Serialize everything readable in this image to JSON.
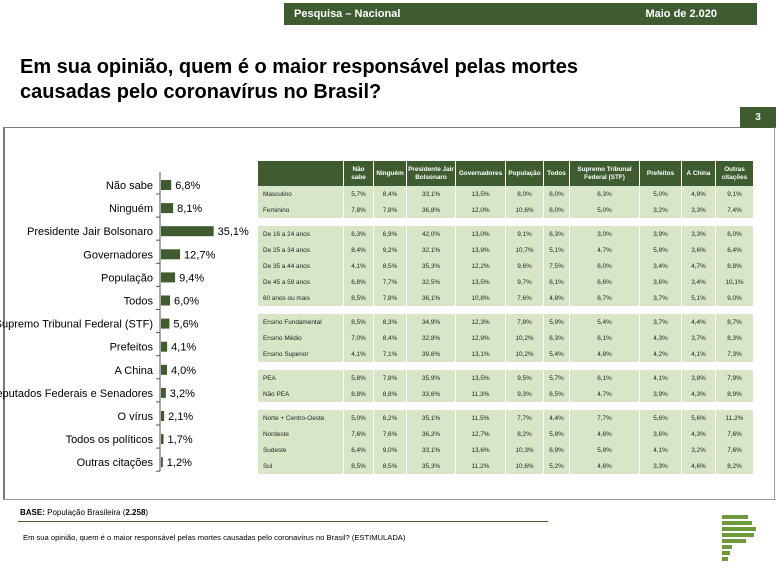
{
  "header": {
    "left": "Pesquisa – Nacional",
    "right": "Maio de 2.020"
  },
  "title": "Em sua opinião, quem é o maior responsável pelas mortes causadas pelo coronavírus no Brasil?",
  "page_number": "3",
  "chart_data": {
    "type": "bar",
    "orientation": "horizontal",
    "categories": [
      "Não sabe",
      "Ninguém",
      "Presidente Jair Bolsonaro",
      "Governadores",
      "População",
      "Todos",
      "Supremo Tribunal Federal (STF)",
      "Prefeitos",
      "A China",
      "Deputados Federais e Senadores",
      "O vírus",
      "Todos os políticos",
      "Outras citações"
    ],
    "values": [
      6.8,
      8.1,
      35.1,
      12.7,
      9.4,
      6.0,
      5.6,
      4.1,
      4.0,
      3.2,
      2.1,
      1.7,
      1.2
    ],
    "value_labels": [
      "6,8%",
      "8,1%",
      "35,1%",
      "12,7%",
      "9,4%",
      "6,0%",
      "5,6%",
      "4,1%",
      "4,0%",
      "3,2%",
      "2,1%",
      "1,7%",
      "1,2%"
    ],
    "bar_color": "#3f5c30"
  },
  "table": {
    "headers": [
      "",
      "Não sabe",
      "Ninguém",
      "Presidente Jair Bolsonaro",
      "Governadores",
      "População",
      "Todos",
      "Supremo Tribunal Federal (STF)",
      "Prefeitos",
      "A China",
      "Outras citações"
    ],
    "groups": [
      [
        [
          "Masculino",
          "5,7%",
          "8,4%",
          "33,1%",
          "13,5%",
          "8,0%",
          "6,0%",
          "6,3%",
          "5,0%",
          "4,9%",
          "9,1%"
        ],
        [
          "Feminino",
          "7,8%",
          "7,8%",
          "36,8%",
          "12,0%",
          "10,6%",
          "6,0%",
          "5,0%",
          "3,2%",
          "3,3%",
          "7,4%"
        ]
      ],
      [
        [
          "De 16 a 24 anos",
          "6,3%",
          "6,9%",
          "42,0%",
          "13,0%",
          "9,1%",
          "6,3%",
          "3,0%",
          "3,9%",
          "3,3%",
          "6,0%"
        ],
        [
          "De 25 a 34 anos",
          "8,4%",
          "9,2%",
          "32,1%",
          "13,9%",
          "10,7%",
          "5,1%",
          "4,7%",
          "5,8%",
          "3,6%",
          "6,4%"
        ],
        [
          "De 35 a 44 anos",
          "4,1%",
          "8,5%",
          "35,3%",
          "12,2%",
          "9,6%",
          "7,5%",
          "6,0%",
          "3,4%",
          "4,7%",
          "8,8%"
        ],
        [
          "De 45 a 59 anos",
          "6,8%",
          "7,7%",
          "32,5%",
          "13,5%",
          "9,7%",
          "6,1%",
          "6,6%",
          "3,6%",
          "3,4%",
          "10,1%"
        ],
        [
          "60 anos ou mais",
          "8,5%",
          "7,8%",
          "36,1%",
          "10,8%",
          "7,6%",
          "4,8%",
          "6,7%",
          "3,7%",
          "5,1%",
          "9,0%"
        ]
      ],
      [
        [
          "Ensino Fundamental",
          "8,5%",
          "8,3%",
          "34,9%",
          "12,3%",
          "7,8%",
          "5,9%",
          "5,4%",
          "3,7%",
          "4,4%",
          "8,7%"
        ],
        [
          "Ensino Médio",
          "7,0%",
          "8,4%",
          "32,8%",
          "12,9%",
          "10,2%",
          "6,3%",
          "6,1%",
          "4,3%",
          "3,7%",
          "8,3%"
        ],
        [
          "Ensino Superior",
          "4,1%",
          "7,1%",
          "39,6%",
          "13,1%",
          "10,2%",
          "5,4%",
          "4,8%",
          "4,2%",
          "4,1%",
          "7,3%"
        ]
      ],
      [
        [
          "PEA",
          "5,8%",
          "7,8%",
          "35,9%",
          "13,5%",
          "9,5%",
          "5,7%",
          "6,1%",
          "4,1%",
          "3,8%",
          "7,9%"
        ],
        [
          "Não PEA",
          "8,8%",
          "8,8%",
          "33,6%",
          "11,3%",
          "9,3%",
          "6,5%",
          "4,7%",
          "3,9%",
          "4,3%",
          "8,9%"
        ]
      ],
      [
        [
          "Norte + Centro-Oeste",
          "5,0%",
          "6,2%",
          "35,1%",
          "11,5%",
          "7,7%",
          "4,4%",
          "7,7%",
          "5,6%",
          "5,6%",
          "11,2%"
        ],
        [
          "Nordeste",
          "7,6%",
          "7,6%",
          "36,2%",
          "12,7%",
          "8,2%",
          "5,8%",
          "4,6%",
          "3,6%",
          "4,3%",
          "7,6%"
        ],
        [
          "Sudeste",
          "6,4%",
          "9,0%",
          "33,1%",
          "13,6%",
          "10,3%",
          "6,9%",
          "5,8%",
          "4,1%",
          "3,2%",
          "7,6%"
        ],
        [
          "Sul",
          "8,5%",
          "8,5%",
          "35,3%",
          "11,2%",
          "10,6%",
          "5,2%",
          "4,6%",
          "3,3%",
          "4,6%",
          "8,2%"
        ]
      ]
    ]
  },
  "base": {
    "label": "BASE:",
    "text": " População Brasileira (",
    "n": "2.258",
    "close": ")"
  },
  "question": "Em sua opinião, quem é o maior responsável pelas mortes causadas pelo coronavírus no Brasil? (ESTIMULADA)",
  "colors": {
    "brand_green": "#3f5c30",
    "row_fill": "#d8e6c8"
  },
  "logo_icon": "logo-bars-icon"
}
